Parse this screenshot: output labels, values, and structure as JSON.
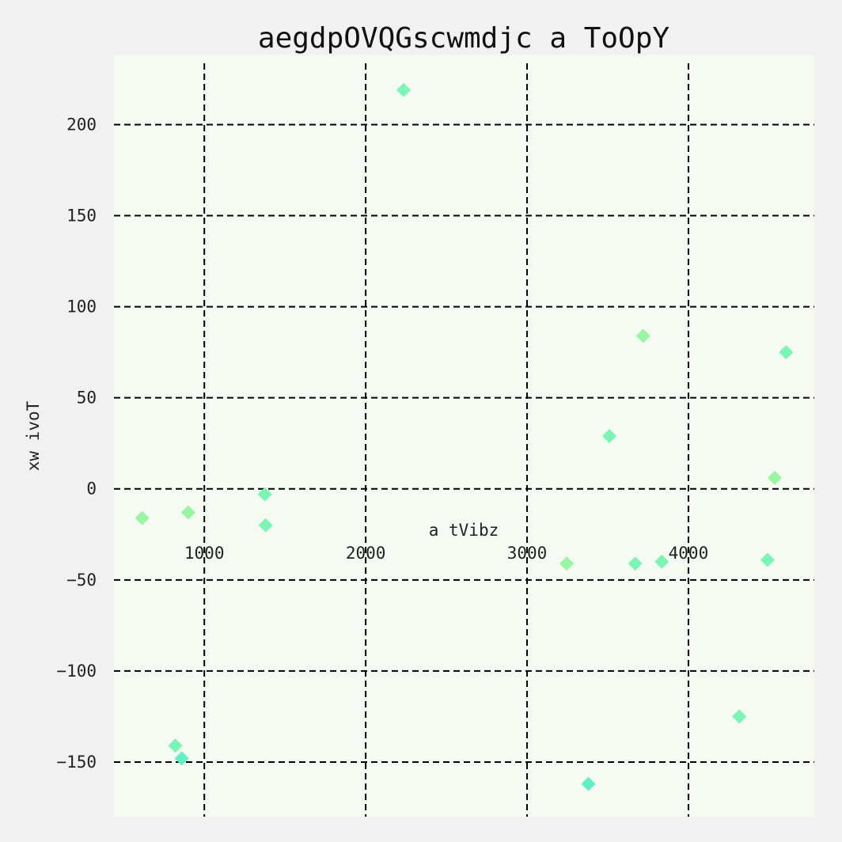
{
  "chart_data": {
    "type": "scatter",
    "title": "aegdpOVQGscwmdjc a ToOpY",
    "xlabel": "a tVibz",
    "ylabel": "xw ivoT",
    "xlim": [
      440,
      4780
    ],
    "ylim": [
      -180,
      238
    ],
    "xticks": [
      1000,
      2000,
      3000,
      4000
    ],
    "yticks": [
      -150,
      -100,
      -50,
      0,
      50,
      100,
      150,
      200
    ],
    "xtick_labels": [
      "1000",
      "2000",
      "3000",
      "4000"
    ],
    "ytick_labels": [
      "−150",
      "−100",
      "−50",
      "0",
      "50",
      "100",
      "150",
      "200"
    ],
    "grid": true,
    "marker": "diamond",
    "points": [
      {
        "x": 615,
        "y": -16,
        "color": "#98f5a1"
      },
      {
        "x": 820,
        "y": -141,
        "color": "#7af5b3"
      },
      {
        "x": 860,
        "y": -148,
        "color": "#5ff0c4"
      },
      {
        "x": 900,
        "y": -13,
        "color": "#98f5a1"
      },
      {
        "x": 1375,
        "y": -3,
        "color": "#7af5b3"
      },
      {
        "x": 1380,
        "y": -20,
        "color": "#7af5b3"
      },
      {
        "x": 2235,
        "y": 219,
        "color": "#7af5b3"
      },
      {
        "x": 3245,
        "y": -41,
        "color": "#98f5a1"
      },
      {
        "x": 3380,
        "y": -162,
        "color": "#5ff0c4"
      },
      {
        "x": 3510,
        "y": 29,
        "color": "#7af5b3"
      },
      {
        "x": 3670,
        "y": -41,
        "color": "#7af5b3"
      },
      {
        "x": 3720,
        "y": 84,
        "color": "#98f5a1"
      },
      {
        "x": 3835,
        "y": -40,
        "color": "#7af5b3"
      },
      {
        "x": 4315,
        "y": -125,
        "color": "#7af5b3"
      },
      {
        "x": 4490,
        "y": -39,
        "color": "#7af5b3"
      },
      {
        "x": 4535,
        "y": 6,
        "color": "#98f5a1"
      },
      {
        "x": 4605,
        "y": 75,
        "color": "#7af5b3"
      }
    ],
    "colors": {
      "plot_background": "#f5faf3",
      "page_background": "#f1f1f1",
      "grid": "#000000"
    }
  }
}
